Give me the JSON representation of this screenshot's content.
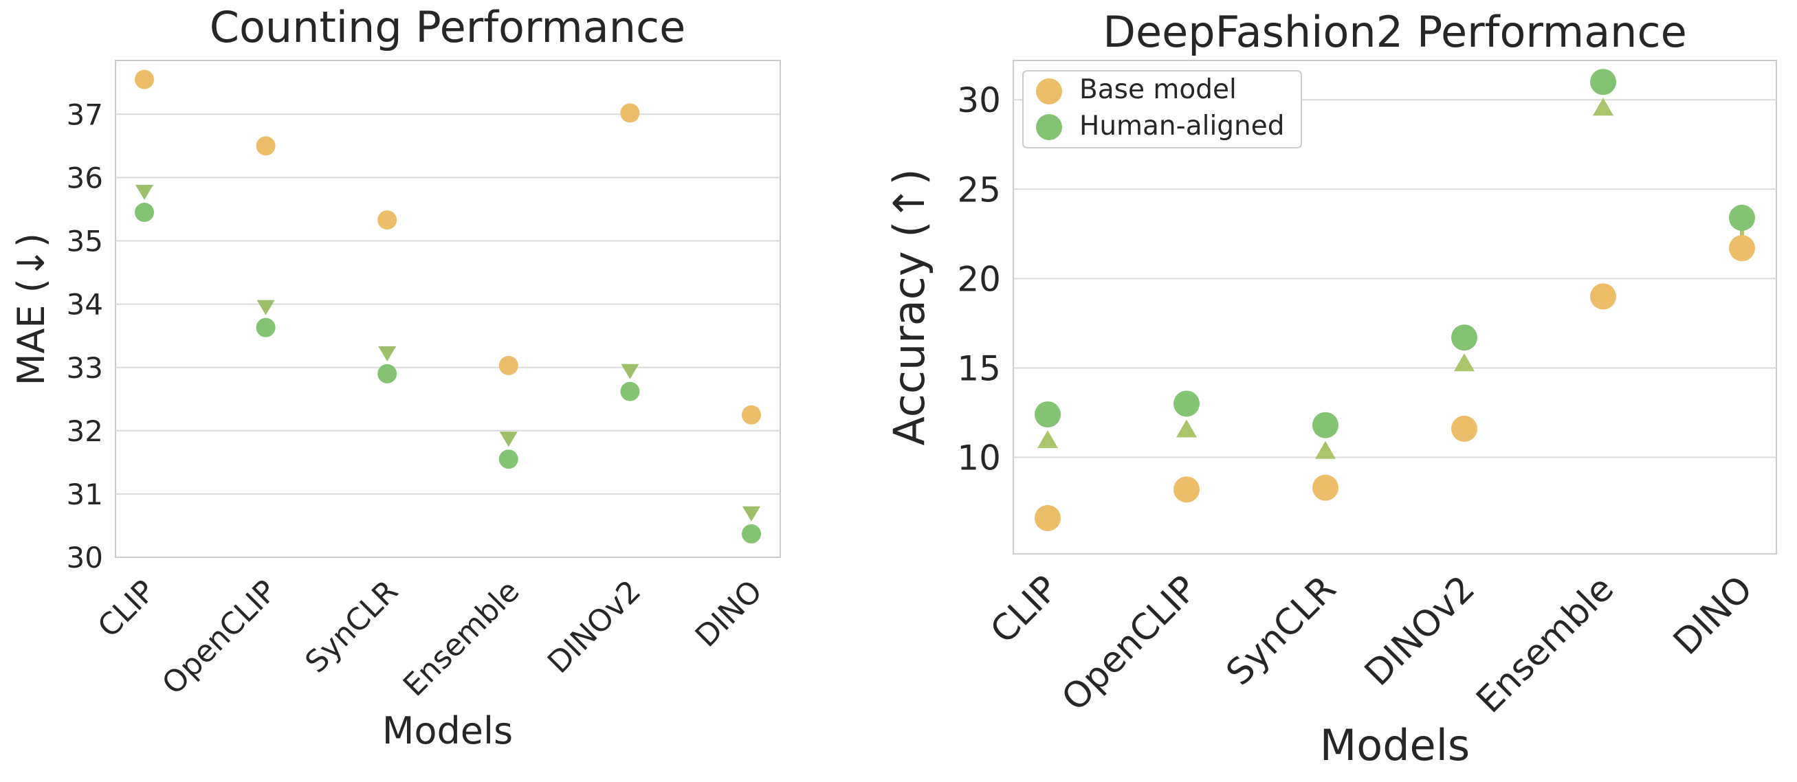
{
  "colors": {
    "base": "#ECBE6A",
    "aligned": "#84C274",
    "grid": "#d9d9d9",
    "axes_frame": "#cccccc",
    "text": "#262626"
  },
  "legend": {
    "base_label": "Base model",
    "aligned_label": "Human-aligned"
  },
  "chart_data": [
    {
      "type": "scatter",
      "title": "Counting Performance",
      "xlabel": "Models",
      "ylabel": "MAE (↓)",
      "categories": [
        "CLIP",
        "OpenCLIP",
        "SynCLR",
        "Ensemble",
        "DINOv2",
        "DINO"
      ],
      "series": [
        {
          "name": "Base model",
          "values": [
            37.55,
            36.5,
            35.33,
            33.03,
            37.02,
            32.25
          ]
        },
        {
          "name": "Human-aligned",
          "values": [
            35.45,
            33.63,
            32.9,
            31.55,
            32.62,
            30.37
          ]
        }
      ],
      "ylim": [
        30,
        37.85
      ],
      "yticks": [
        30,
        31,
        32,
        33,
        34,
        35,
        36,
        37
      ],
      "grid": true,
      "arrows": "base-to-aligned"
    },
    {
      "type": "scatter",
      "title": "DeepFashion2 Performance",
      "xlabel": "Models",
      "ylabel": "Accuracy (↑)",
      "categories": [
        "CLIP",
        "OpenCLIP",
        "SynCLR",
        "DINOv2",
        "Ensemble",
        "DINO"
      ],
      "series": [
        {
          "name": "Base model",
          "values": [
            6.6,
            8.2,
            8.3,
            11.6,
            19.0,
            21.7
          ]
        },
        {
          "name": "Human-aligned",
          "values": [
            12.4,
            13.0,
            11.8,
            16.7,
            31.0,
            23.4
          ]
        }
      ],
      "ylim": [
        4.6,
        32.2
      ],
      "yticks": [
        10,
        15,
        20,
        25,
        30
      ],
      "grid": true,
      "legend_position": "top-left",
      "arrows": "base-to-aligned"
    }
  ]
}
